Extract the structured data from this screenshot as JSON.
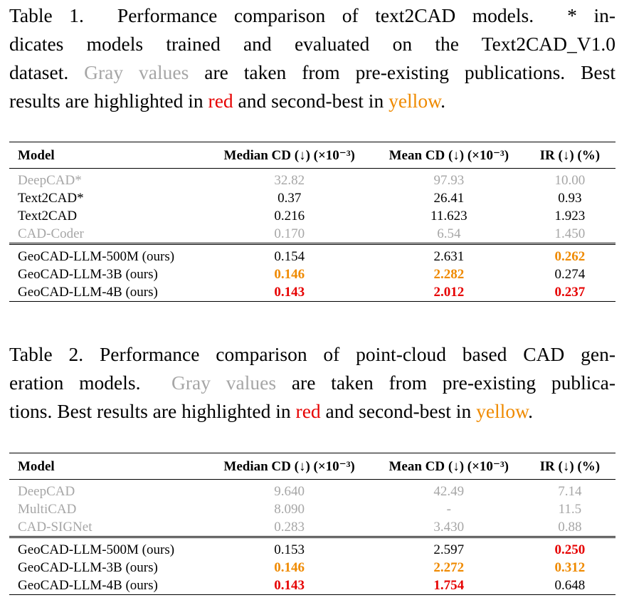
{
  "colors": {
    "gray": "#a6a6a6",
    "red": "#e60000",
    "yellow": "#ef8a00"
  },
  "tables": [
    {
      "caption": [
        [
          {
            "text": "Table 1.  Performance comparison of text2CAD models.  * in-"
          }
        ],
        [
          {
            "text": "dicates models trained and evaluated on the Text2CAD_V1.0"
          }
        ],
        [
          {
            "text": "dataset. "
          },
          {
            "text": "Gray values",
            "style": "gray"
          },
          {
            "text": " are taken from pre-existing publications. Best"
          }
        ],
        [
          {
            "text": "results are highlighted in "
          },
          {
            "text": "red",
            "style": "red-plain"
          },
          {
            "text": " and second-best in "
          },
          {
            "text": "yellow",
            "style": "yellow-plain"
          },
          {
            "text": "."
          }
        ]
      ],
      "headers": [
        "Model",
        "Median CD (↓) (×10⁻³)",
        "Mean CD (↓) (×10⁻³)",
        "IR (↓) (%)"
      ],
      "baselines": [
        {
          "cells": [
            "DeepCAD*",
            "32.82",
            "97.93",
            "10.00"
          ],
          "style": "gray"
        },
        {
          "cells": [
            "Text2CAD*",
            "0.37",
            "26.41",
            "0.93"
          ]
        },
        {
          "cells": [
            "Text2CAD",
            "0.216",
            "11.623",
            "1.923"
          ]
        },
        {
          "cells": [
            "CAD-Coder",
            "0.170",
            "6.54",
            "1.450"
          ],
          "style": "gray"
        }
      ],
      "ours": [
        {
          "cells": [
            "GeoCAD-LLM-500M (ours)",
            "0.154",
            "2.631",
            "0.262"
          ],
          "highlight": [
            null,
            null,
            null,
            "yellow"
          ]
        },
        {
          "cells": [
            "GeoCAD-LLM-3B (ours)",
            "0.146",
            "2.282",
            "0.274"
          ],
          "highlight": [
            null,
            "yellow",
            "yellow",
            null
          ]
        },
        {
          "cells": [
            "GeoCAD-LLM-4B (ours)",
            "0.143",
            "2.012",
            "0.237"
          ],
          "highlight": [
            null,
            "red",
            "red",
            "red"
          ]
        }
      ]
    },
    {
      "caption": [
        [
          {
            "text": "Table 2. Performance comparison of point-cloud based CAD gen-"
          }
        ],
        [
          {
            "text": "eration models.  "
          },
          {
            "text": "Gray values",
            "style": "gray"
          },
          {
            "text": " are taken from pre-existing publica-"
          }
        ],
        [
          {
            "text": "tions. Best results are highlighted in "
          },
          {
            "text": "red",
            "style": "red-plain"
          },
          {
            "text": " and second-best in "
          },
          {
            "text": "yellow",
            "style": "yellow-plain"
          },
          {
            "text": "."
          }
        ]
      ],
      "headers": [
        "Model",
        "Median CD (↓) (×10⁻³)",
        "Mean CD (↓) (×10⁻³)",
        "IR (↓) (%)"
      ],
      "baselines": [
        {
          "cells": [
            "DeepCAD",
            "9.640",
            "42.49",
            "7.14"
          ],
          "style": "gray"
        },
        {
          "cells": [
            "MultiCAD",
            "8.090",
            "-",
            "11.5"
          ],
          "style": "gray"
        },
        {
          "cells": [
            "CAD-SIGNet",
            "0.283",
            "3.430",
            "0.88"
          ],
          "style": "gray"
        }
      ],
      "ours": [
        {
          "cells": [
            "GeoCAD-LLM-500M (ours)",
            "0.153",
            "2.597",
            "0.250"
          ],
          "highlight": [
            null,
            null,
            null,
            "red"
          ]
        },
        {
          "cells": [
            "GeoCAD-LLM-3B (ours)",
            "0.146",
            "2.272",
            "0.312"
          ],
          "highlight": [
            null,
            "yellow",
            "yellow",
            "yellow"
          ]
        },
        {
          "cells": [
            "GeoCAD-LLM-4B (ours)",
            "0.143",
            "1.754",
            "0.648"
          ],
          "highlight": [
            null,
            "red",
            "red",
            null
          ]
        }
      ]
    }
  ]
}
